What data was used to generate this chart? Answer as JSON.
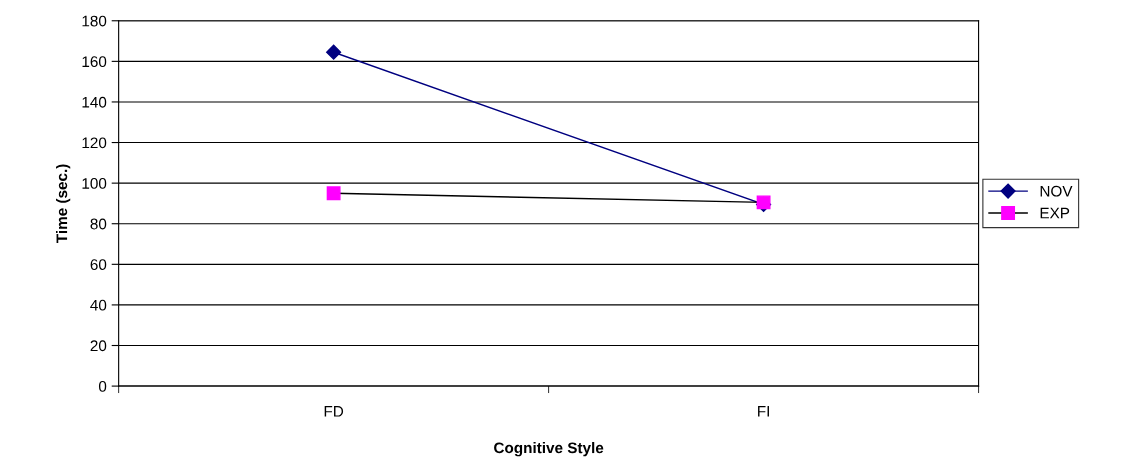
{
  "chart_data": {
    "type": "line",
    "xlabel": "Cognitive Style",
    "ylabel": "Time (sec.)",
    "categories": [
      "FD",
      "FI"
    ],
    "series": [
      {
        "name": "NOV",
        "color": "#000080",
        "marker": "diamond",
        "values": [
          164.5,
          89.5
        ]
      },
      {
        "name": "EXP",
        "color": "#000000",
        "colors": [
          "#ff00ff",
          "#ff00ff"
        ],
        "marker": "square",
        "values": [
          95,
          90.5
        ]
      }
    ],
    "ylim": [
      0,
      180
    ],
    "yticks": [
      0,
      20,
      40,
      60,
      80,
      100,
      120,
      140,
      160,
      180
    ],
    "grid": "y",
    "legend": "right"
  }
}
